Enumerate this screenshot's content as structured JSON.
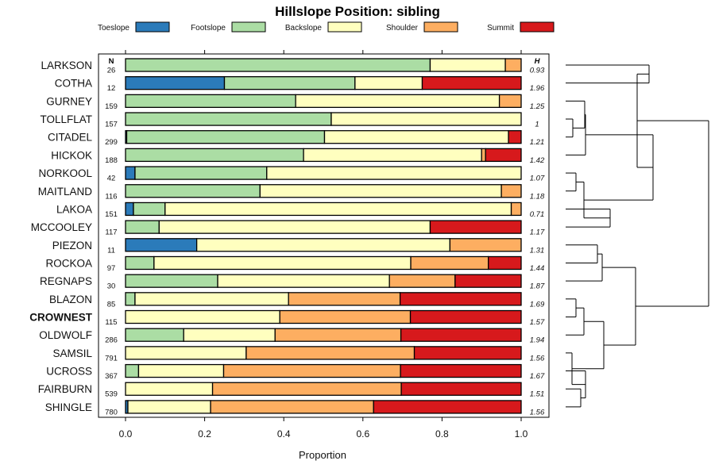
{
  "chart_data": {
    "type": "bar",
    "stacked": true,
    "orientation": "horizontal",
    "title": "Hillslope Position: sibling",
    "xlabel": "Proportion",
    "ylabel": "",
    "xlim": [
      0,
      1
    ],
    "xticks": [
      "0.0",
      "0.2",
      "0.4",
      "0.6",
      "0.8",
      "1.0"
    ],
    "n_header": "N",
    "h_header": "H",
    "legend_position": "top",
    "series": [
      {
        "name": "Toeslope",
        "color": "#2b7bba"
      },
      {
        "name": "Footslope",
        "color": "#abdda4"
      },
      {
        "name": "Backslope",
        "color": "#ffffbf"
      },
      {
        "name": "Shoulder",
        "color": "#fdae61"
      },
      {
        "name": "Summit",
        "color": "#d7191c"
      }
    ],
    "rows": [
      {
        "label": "LARKSON",
        "n": "26",
        "h": "0.93",
        "bold": false,
        "values": [
          0.0,
          0.77,
          0.19,
          0.04,
          0.0
        ]
      },
      {
        "label": "COTHA",
        "n": "12",
        "h": "1.96",
        "bold": false,
        "values": [
          0.25,
          0.33,
          0.17,
          0.0,
          0.25
        ]
      },
      {
        "label": "GURNEY",
        "n": "159",
        "h": "1.25",
        "bold": false,
        "values": [
          0.0,
          0.43,
          0.515,
          0.055,
          0.0
        ]
      },
      {
        "label": "TOLLFLAT",
        "n": "157",
        "h": "1",
        "bold": false,
        "values": [
          0.0,
          0.52,
          0.48,
          0.0,
          0.0
        ]
      },
      {
        "label": "CITADEL",
        "n": "299",
        "h": "1.21",
        "bold": false,
        "values": [
          0.003,
          0.5,
          0.465,
          0.0,
          0.032
        ]
      },
      {
        "label": "HICKOK",
        "n": "188",
        "h": "1.42",
        "bold": false,
        "values": [
          0.0,
          0.45,
          0.45,
          0.01,
          0.09
        ]
      },
      {
        "label": "NORKOOL",
        "n": "42",
        "h": "1.07",
        "bold": false,
        "values": [
          0.024,
          0.333,
          0.643,
          0.0,
          0.0
        ]
      },
      {
        "label": "MAITLAND",
        "n": "116",
        "h": "1.18",
        "bold": false,
        "values": [
          0.0,
          0.34,
          0.61,
          0.05,
          0.0
        ]
      },
      {
        "label": "LAKOA",
        "n": "151",
        "h": "0.71",
        "bold": false,
        "values": [
          0.02,
          0.08,
          0.875,
          0.025,
          0.0
        ]
      },
      {
        "label": "MCCOOLEY",
        "n": "117",
        "h": "1.17",
        "bold": false,
        "values": [
          0.0,
          0.085,
          0.685,
          0.0,
          0.23
        ]
      },
      {
        "label": "PIEZON",
        "n": "11",
        "h": "1.31",
        "bold": false,
        "values": [
          0.18,
          0.0,
          0.64,
          0.18,
          0.0
        ]
      },
      {
        "label": "ROCKOA",
        "n": "97",
        "h": "1.44",
        "bold": false,
        "values": [
          0.0,
          0.072,
          0.649,
          0.196,
          0.083
        ]
      },
      {
        "label": "REGNAPS",
        "n": "30",
        "h": "1.87",
        "bold": false,
        "values": [
          0.0,
          0.233,
          0.434,
          0.166,
          0.167
        ]
      },
      {
        "label": "BLAZON",
        "n": "85",
        "h": "1.69",
        "bold": false,
        "values": [
          0.0,
          0.024,
          0.388,
          0.282,
          0.306
        ]
      },
      {
        "label": "CROWNEST",
        "n": "115",
        "h": "1.57",
        "bold": true,
        "values": [
          0.0,
          0.0,
          0.39,
          0.33,
          0.28
        ]
      },
      {
        "label": "OLDWOLF",
        "n": "286",
        "h": "1.94",
        "bold": false,
        "values": [
          0.0,
          0.147,
          0.231,
          0.318,
          0.304
        ]
      },
      {
        "label": "SAMSIL",
        "n": "791",
        "h": "1.56",
        "bold": false,
        "values": [
          0.0,
          0.0,
          0.305,
          0.425,
          0.27
        ]
      },
      {
        "label": "UCROSS",
        "n": "367",
        "h": "1.67",
        "bold": false,
        "values": [
          0.0,
          0.033,
          0.215,
          0.447,
          0.305
        ]
      },
      {
        "label": "FAIRBURN",
        "n": "539",
        "h": "1.51",
        "bold": false,
        "values": [
          0.0,
          0.0,
          0.22,
          0.477,
          0.303
        ]
      },
      {
        "label": "SHINGLE",
        "n": "780",
        "h": "1.56",
        "bold": false,
        "values": [
          0.006,
          0.0,
          0.209,
          0.412,
          0.373
        ]
      }
    ]
  }
}
